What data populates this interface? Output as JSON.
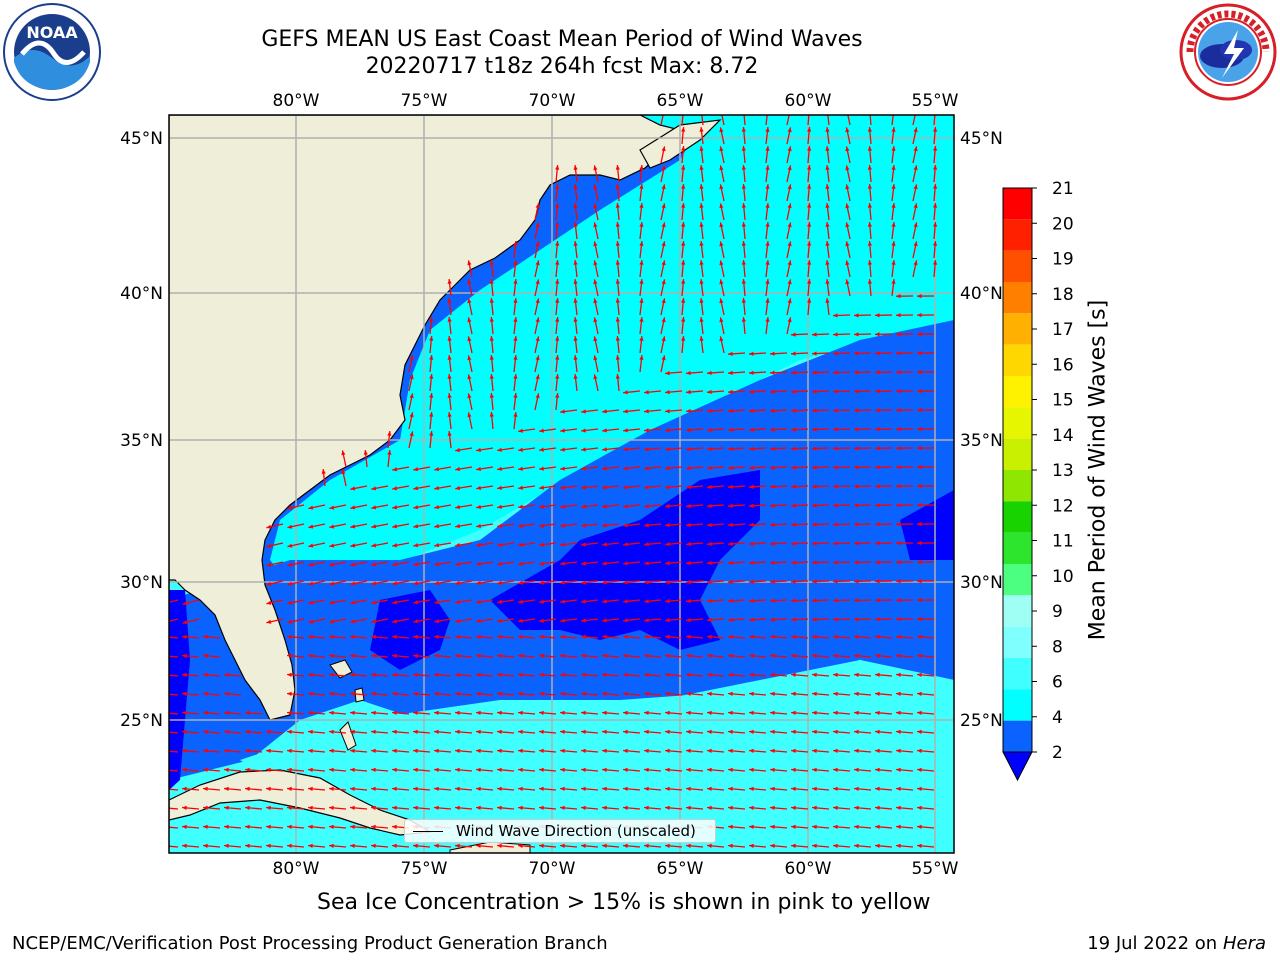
{
  "title": {
    "line1": "GEFS MEAN US East Coast Mean Period of Wind Waves",
    "line2": "20220717 t18z 264h fcst   Max: 8.72"
  },
  "axes": {
    "lon_ticks": [
      "80°W",
      "75°W",
      "70°W",
      "65°W",
      "60°W",
      "55°W"
    ],
    "lat_ticks": [
      "45°N",
      "40°N",
      "35°N",
      "30°N",
      "25°N"
    ],
    "lon_range": [
      -85,
      -54.7
    ],
    "lat_range": [
      20.5,
      45.9
    ],
    "grid": true
  },
  "legend": {
    "label": "Wind Wave Direction (unscaled)"
  },
  "colorbar": {
    "label": "Mean Period of Wind Waves [s]",
    "ticks": [
      "2",
      "4",
      "6",
      "8",
      "9",
      "10",
      "11",
      "12",
      "13",
      "14",
      "15",
      "16",
      "17",
      "18",
      "19",
      "20",
      "21"
    ],
    "colors": [
      "#0a62ff",
      "#00ffff",
      "#40ffff",
      "#80ffff",
      "#a0fff4",
      "#4cff80",
      "#2ee52e",
      "#18d300",
      "#8fe600",
      "#c8f000",
      "#e6f500",
      "#fff200",
      "#ffd700",
      "#ffb000",
      "#ff8000",
      "#ff5000",
      "#ff2000",
      "#ff0000"
    ],
    "extend_low_color": "#0000ff"
  },
  "colors": {
    "land": "#efeed9",
    "ocean_low": "#0000ff",
    "ocean_2_4": "#0a62ff",
    "ocean_4_6": "#00ffff",
    "ocean_6_8": "#40ffff",
    "arrow": "#ff0000",
    "grid": "#b0b0b0"
  },
  "note": "Sea Ice Concentration > 15% is shown in pink to yellow",
  "footer": {
    "left": "NCEP/EMC/Verification Post Processing Product Generation Branch",
    "right_date": "19 Jul 2022 on ",
    "right_host": "Hera"
  },
  "logos": {
    "left": "noaa-logo",
    "left_text": "NOAA",
    "right": "nws-logo"
  }
}
